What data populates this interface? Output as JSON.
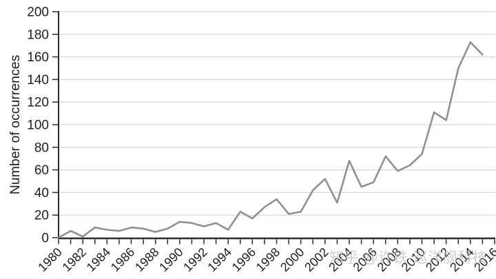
{
  "watermark": {
    "text": "知乎 @许铁-巡洋舰科技"
  },
  "chart_data": {
    "type": "line",
    "title": "",
    "xlabel": "",
    "ylabel": "Number of occurrences",
    "legend": "none",
    "grid": "horizontal",
    "ylim": [
      0,
      200
    ],
    "ytick_step": 20,
    "yticks": [
      0,
      20,
      40,
      60,
      80,
      100,
      120,
      140,
      160,
      180,
      200
    ],
    "xaxis_range": [
      1980,
      2016
    ],
    "xticks_all": [
      1980,
      1981,
      1982,
      1983,
      1984,
      1985,
      1986,
      1987,
      1988,
      1989,
      1990,
      1991,
      1992,
      1993,
      1994,
      1995,
      1996,
      1997,
      1998,
      1999,
      2000,
      2001,
      2002,
      2003,
      2004,
      2005,
      2006,
      2007,
      2008,
      2009,
      2010,
      2011,
      2012,
      2013,
      2014,
      2015,
      2016
    ],
    "xticks_labeled": [
      1980,
      1982,
      1984,
      1986,
      1988,
      1990,
      1992,
      1994,
      1996,
      1998,
      2000,
      2002,
      2004,
      2006,
      2008,
      2010,
      2012,
      2014,
      2016
    ],
    "x": [
      1980,
      1981,
      1982,
      1983,
      1984,
      1985,
      1986,
      1987,
      1988,
      1989,
      1990,
      1991,
      1992,
      1993,
      1994,
      1995,
      1996,
      1997,
      1998,
      1999,
      2000,
      2001,
      2002,
      2003,
      2004,
      2005,
      2006,
      2007,
      2008,
      2009,
      2010,
      2011,
      2012,
      2013,
      2014,
      2015
    ],
    "values": [
      0,
      6,
      1,
      9,
      7,
      6,
      9,
      8,
      5,
      8,
      14,
      13,
      10,
      13,
      7,
      23,
      17,
      27,
      34,
      21,
      23,
      42,
      52,
      31,
      68,
      45,
      49,
      72,
      59,
      64,
      74,
      111,
      104,
      150,
      173,
      162
    ],
    "colors": {
      "line": "#909090",
      "axis": "#2b2b2b",
      "grid": "#d6d6d6",
      "text": "#1d1d1d",
      "watermark": "#c3c3c3"
    }
  }
}
